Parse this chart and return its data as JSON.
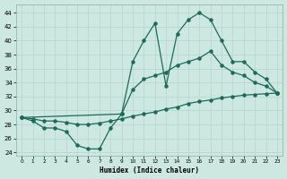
{
  "xlabel": "Humidex (Indice chaleur)",
  "bg_color": "#cce8e0",
  "line_color": "#1a6b5a",
  "grid_color": "#b8d8d0",
  "xlim": [
    -0.5,
    23.5
  ],
  "ylim": [
    23.5,
    45.2
  ],
  "yticks": [
    24,
    26,
    28,
    30,
    32,
    34,
    36,
    38,
    40,
    42,
    44
  ],
  "xticks": [
    0,
    1,
    2,
    3,
    4,
    5,
    6,
    7,
    8,
    9,
    10,
    11,
    12,
    13,
    14,
    15,
    16,
    17,
    18,
    19,
    20,
    21,
    22,
    23
  ],
  "curve1_x": [
    0,
    1,
    2,
    3,
    4,
    5,
    6,
    7,
    8,
    9,
    10,
    11,
    12,
    13,
    14,
    15,
    16,
    17,
    18,
    19,
    20,
    21,
    22,
    23
  ],
  "curve1_y": [
    29.0,
    28.5,
    27.5,
    27.5,
    27.0,
    25.0,
    24.5,
    24.5,
    27.5,
    29.5,
    37.0,
    40.0,
    42.5,
    33.5,
    41.0,
    43.0,
    44.0,
    43.0,
    40.0,
    37.0,
    37.0,
    35.5,
    34.5,
    32.5
  ],
  "curve2_x": [
    0,
    9,
    10,
    11,
    12,
    13,
    14,
    15,
    16,
    17,
    18,
    19,
    20,
    21,
    22,
    23
  ],
  "curve2_y": [
    29.0,
    29.5,
    33.0,
    34.5,
    35.0,
    35.5,
    36.5,
    37.0,
    37.5,
    38.5,
    36.5,
    35.5,
    35.0,
    34.0,
    33.5,
    32.5
  ],
  "curve3_x": [
    0,
    1,
    2,
    3,
    4,
    5,
    6,
    7,
    8,
    9,
    10,
    11,
    12,
    13,
    14,
    15,
    16,
    17,
    18,
    19,
    20,
    21,
    22,
    23
  ],
  "curve3_y": [
    29.0,
    28.8,
    28.5,
    28.5,
    28.3,
    28.0,
    28.0,
    28.2,
    28.5,
    28.8,
    29.2,
    29.5,
    29.8,
    30.2,
    30.5,
    31.0,
    31.3,
    31.5,
    31.8,
    32.0,
    32.2,
    32.3,
    32.4,
    32.5
  ]
}
